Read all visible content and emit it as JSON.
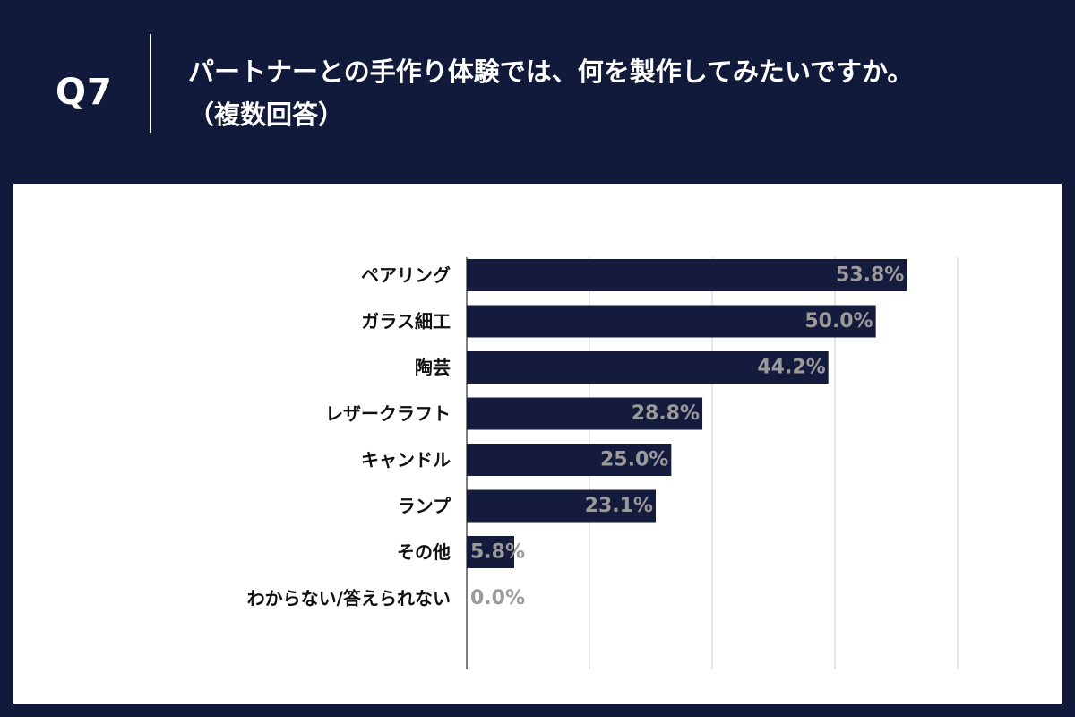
{
  "header": {
    "question_number": "Q7",
    "title_line1": "パートナーとの手作り体験では、何を製作してみたいですか。",
    "title_line2": "（複数回答）"
  },
  "colors": {
    "background": "#111a3a",
    "bar": "#141b3d",
    "value_label": "#9a9a9a",
    "grid": "#cfcfcf"
  },
  "chart_data": {
    "type": "bar",
    "orientation": "horizontal",
    "title": "パートナーとの手作り体験では、何を製作してみたいですか。（複数回答）",
    "categories": [
      "ペアリング",
      "ガラス細工",
      "陶芸",
      "レザークラフト",
      "キャンドル",
      "ランプ",
      "その他",
      "わからない/答えられない"
    ],
    "values": [
      53.8,
      50.0,
      44.2,
      28.8,
      25.0,
      23.1,
      5.8,
      0.0
    ],
    "value_labels": [
      "53.8%",
      "50.0%",
      "44.2%",
      "28.8%",
      "25.0%",
      "23.1%",
      "5.8%",
      "0.0%"
    ],
    "unit": "%",
    "xlim": [
      0,
      60
    ],
    "x_gridlines": [
      0,
      15,
      30,
      45,
      60
    ],
    "grid": true,
    "legend": "none"
  }
}
